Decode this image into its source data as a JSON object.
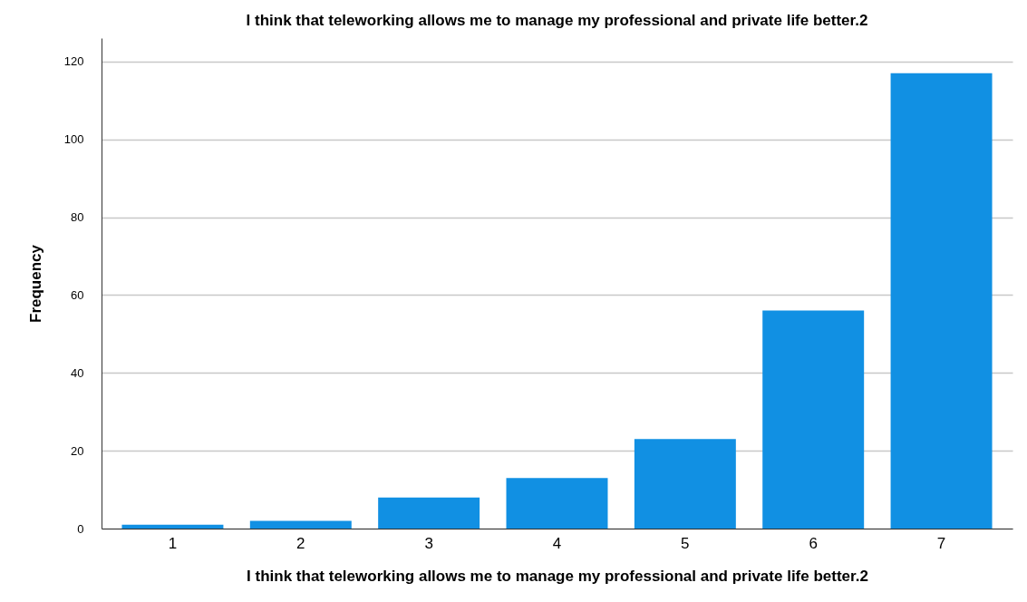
{
  "chart_data": {
    "type": "bar",
    "title": "I think that teleworking allows me to manage my professional and private life better.2",
    "xlabel": "I think that teleworking allows me to manage my professional and private life better.2",
    "ylabel": "Frequency",
    "categories": [
      "1",
      "2",
      "3",
      "4",
      "5",
      "6",
      "7"
    ],
    "values": [
      1,
      2,
      8,
      13,
      23,
      56,
      117
    ],
    "color": "#1190e3",
    "ylim": [
      0,
      126
    ],
    "yticks": [
      0,
      20,
      40,
      60,
      80,
      100,
      120
    ],
    "grid": "y"
  }
}
